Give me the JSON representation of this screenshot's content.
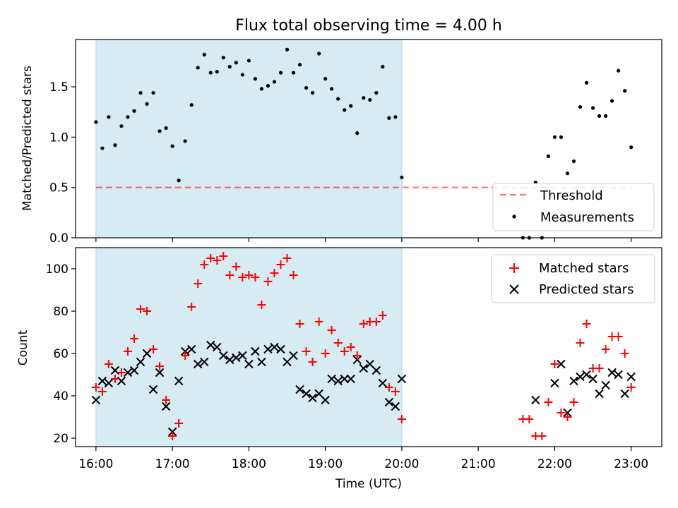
{
  "title": "Flux total observing time = 4.00 h",
  "colors": {
    "shade": "#add8e6",
    "threshold": "#ff0000",
    "measurement": "#000000",
    "matched": "#ff0000",
    "predicted": "#000000"
  },
  "chart_data": [
    {
      "type": "scatter",
      "panel": "top",
      "ylabel": "Matched/Predicted stars",
      "ylim": [
        0,
        1.97
      ],
      "yticks": [
        "0.0",
        "0.5",
        "1.0",
        "1.5"
      ],
      "ytick_values": [
        0,
        0.5,
        1.0,
        1.5
      ],
      "shaded_region": [
        "16:00",
        "20:00"
      ],
      "legend_position": "lower-right",
      "threshold": {
        "name": "Threshold",
        "value": 0.5,
        "x_range": [
          "16:00",
          "23:00"
        ],
        "style": "dashed"
      },
      "series": [
        {
          "name": "Measurements",
          "x": [
            "16:00",
            "16:05",
            "16:10",
            "16:15",
            "16:20",
            "16:25",
            "16:30",
            "16:35",
            "16:40",
            "16:45",
            "16:50",
            "16:55",
            "17:00",
            "17:05",
            "17:10",
            "17:15",
            "17:20",
            "17:25",
            "17:30",
            "17:35",
            "17:40",
            "17:45",
            "17:50",
            "17:55",
            "18:00",
            "18:05",
            "18:10",
            "18:15",
            "18:20",
            "18:25",
            "18:30",
            "18:35",
            "18:40",
            "18:45",
            "18:50",
            "18:55",
            "19:00",
            "19:05",
            "19:10",
            "19:15",
            "19:20",
            "19:25",
            "19:30",
            "19:35",
            "19:40",
            "19:45",
            "19:50",
            "19:55",
            "20:00",
            "21:35",
            "21:40",
            "21:45",
            "21:50",
            "21:55",
            "22:00",
            "22:05",
            "22:10",
            "22:15",
            "22:20",
            "22:25",
            "22:30",
            "22:35",
            "22:40",
            "22:45",
            "22:50",
            "22:55",
            "23:00"
          ],
          "y": [
            1.15,
            0.89,
            1.2,
            0.92,
            1.11,
            1.2,
            1.26,
            1.44,
            1.33,
            1.44,
            1.06,
            1.09,
            0.91,
            0.57,
            0.96,
            1.32,
            1.69,
            1.82,
            1.64,
            1.65,
            1.79,
            1.7,
            1.74,
            1.62,
            1.76,
            1.58,
            1.48,
            1.51,
            1.55,
            1.64,
            1.87,
            1.64,
            1.72,
            1.49,
            1.44,
            1.83,
            1.58,
            1.48,
            1.38,
            1.27,
            1.31,
            1.04,
            1.39,
            1.37,
            1.44,
            1.7,
            1.19,
            1.2,
            0.6,
            0.0,
            0.0,
            0.55,
            0.0,
            0.81,
            1.0,
            1.0,
            0.64,
            0.76,
            1.3,
            1.54,
            1.29,
            1.21,
            1.21,
            1.36,
            1.66,
            1.46,
            0.9
          ]
        }
      ]
    },
    {
      "type": "scatter",
      "panel": "bottom",
      "xlabel": "Time (UTC)",
      "ylabel": "Count",
      "ylim": [
        16,
        110
      ],
      "yticks": [
        "20",
        "40",
        "60",
        "80",
        "100"
      ],
      "ytick_values": [
        20,
        40,
        60,
        80,
        100
      ],
      "xlim": [
        "15:44",
        "23:24"
      ],
      "xticks": [
        "16:00",
        "17:00",
        "18:00",
        "19:00",
        "20:00",
        "21:00",
        "22:00",
        "23:00"
      ],
      "shaded_region": [
        "16:00",
        "20:00"
      ],
      "legend_position": "upper-right",
      "series": [
        {
          "name": "Matched stars",
          "marker": "plus",
          "x": [
            "16:00",
            "16:05",
            "16:10",
            "16:15",
            "16:20",
            "16:25",
            "16:30",
            "16:35",
            "16:40",
            "16:45",
            "16:50",
            "16:55",
            "17:00",
            "17:05",
            "17:10",
            "17:15",
            "17:20",
            "17:25",
            "17:30",
            "17:35",
            "17:40",
            "17:45",
            "17:50",
            "17:55",
            "18:00",
            "18:05",
            "18:10",
            "18:15",
            "18:20",
            "18:25",
            "18:30",
            "18:35",
            "18:40",
            "18:45",
            "18:50",
            "18:55",
            "19:00",
            "19:05",
            "19:10",
            "19:15",
            "19:20",
            "19:25",
            "19:30",
            "19:35",
            "19:40",
            "19:45",
            "19:50",
            "19:55",
            "20:00",
            "21:35",
            "21:40",
            "21:45",
            "21:50",
            "21:55",
            "22:00",
            "22:05",
            "22:10",
            "22:15",
            "22:20",
            "22:25",
            "22:30",
            "22:35",
            "22:40",
            "22:45",
            "22:50",
            "22:55",
            "23:00"
          ],
          "y": [
            44,
            42,
            55,
            48,
            51,
            61,
            67,
            81,
            80,
            62,
            54,
            38,
            21,
            27,
            59,
            82,
            93,
            102,
            105,
            104,
            106,
            97,
            101,
            96,
            97,
            96,
            83,
            94,
            98,
            102,
            105,
            97,
            74,
            61,
            56,
            75,
            60,
            71,
            65,
            61,
            63,
            59,
            74,
            75,
            75,
            78,
            44,
            42,
            29,
            29,
            29,
            21,
            21,
            37,
            55,
            32,
            30,
            37,
            65,
            74,
            53,
            53,
            62,
            68,
            68,
            60,
            44
          ]
        },
        {
          "name": "Predicted stars",
          "marker": "x",
          "x": [
            "16:00",
            "16:05",
            "16:10",
            "16:15",
            "16:20",
            "16:25",
            "16:30",
            "16:35",
            "16:40",
            "16:45",
            "16:50",
            "16:55",
            "17:00",
            "17:05",
            "17:10",
            "17:15",
            "17:20",
            "17:25",
            "17:30",
            "17:35",
            "17:40",
            "17:45",
            "17:50",
            "17:55",
            "18:00",
            "18:05",
            "18:10",
            "18:15",
            "18:20",
            "18:25",
            "18:30",
            "18:35",
            "18:40",
            "18:45",
            "18:50",
            "18:55",
            "19:00",
            "19:05",
            "19:10",
            "19:15",
            "19:20",
            "19:25",
            "19:30",
            "19:35",
            "19:40",
            "19:45",
            "19:50",
            "19:55",
            "20:00",
            "21:45",
            "22:00",
            "22:05",
            "22:10",
            "22:15",
            "22:20",
            "22:25",
            "22:30",
            "22:35",
            "22:40",
            "22:45",
            "22:50",
            "22:55",
            "23:00"
          ],
          "y": [
            38,
            47,
            46,
            52,
            47,
            51,
            52,
            56,
            60,
            43,
            51,
            35,
            23,
            47,
            61,
            62,
            55,
            56,
            64,
            63,
            59,
            57,
            58,
            59,
            55,
            61,
            56,
            62,
            63,
            62,
            56,
            59,
            43,
            41,
            39,
            41,
            38,
            48,
            47,
            48,
            48,
            57,
            53,
            55,
            52,
            46,
            37,
            35,
            48,
            38,
            46,
            55,
            32,
            47,
            49,
            50,
            48,
            41,
            45,
            51,
            50,
            41,
            49
          ]
        }
      ]
    }
  ]
}
